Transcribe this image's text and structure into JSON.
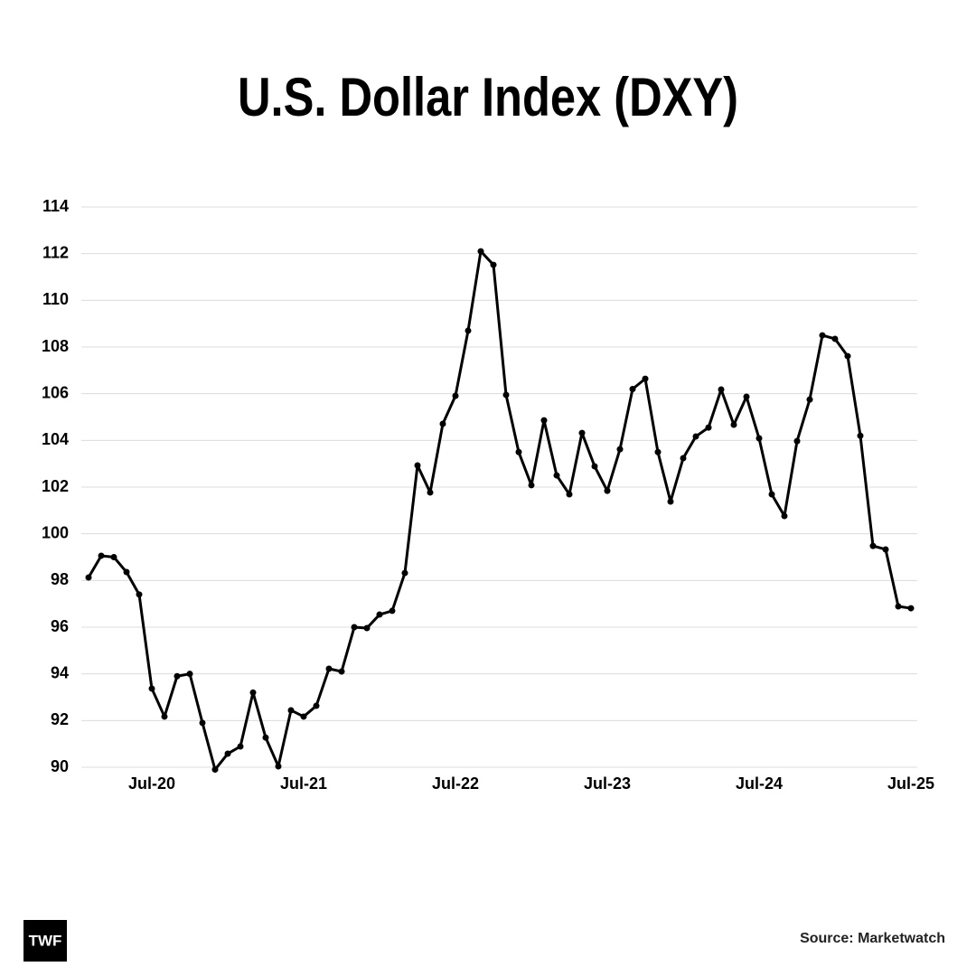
{
  "chart_data": {
    "type": "line",
    "title": "U.S. Dollar Index (DXY)",
    "categories": [
      null,
      null,
      null,
      null,
      null,
      "Jul-20",
      null,
      null,
      null,
      null,
      null,
      null,
      null,
      null,
      null,
      null,
      null,
      "Jul-21",
      null,
      null,
      null,
      null,
      null,
      null,
      null,
      null,
      null,
      null,
      null,
      "Jul-22",
      null,
      null,
      null,
      null,
      null,
      null,
      null,
      null,
      null,
      null,
      null,
      "Jul-23",
      null,
      null,
      null,
      null,
      null,
      null,
      null,
      null,
      null,
      null,
      null,
      "Jul-24",
      null,
      null,
      null,
      null,
      null,
      null,
      null,
      null,
      null,
      null,
      null,
      "Jul-25"
    ],
    "series": [
      {
        "name": "DXY",
        "color": "#000000",
        "values": [
          98.13,
          99.06,
          99.0,
          98.36,
          97.4,
          93.37,
          92.17,
          93.9,
          94.0,
          91.9,
          89.9,
          90.58,
          90.89,
          93.2,
          91.27,
          90.04,
          92.44,
          92.17,
          92.63,
          94.22,
          94.1,
          96.0,
          95.96,
          96.54,
          96.7,
          98.32,
          102.93,
          101.77,
          104.71,
          105.91,
          108.7,
          112.1,
          111.52,
          105.95,
          103.5,
          102.08,
          104.86,
          102.5,
          101.69,
          104.32,
          102.89,
          101.84,
          103.62,
          106.2,
          106.64,
          103.5,
          101.38,
          103.24,
          104.17,
          104.55,
          106.18,
          104.67,
          105.87,
          104.09,
          101.69,
          100.76,
          103.97,
          105.75,
          108.5,
          108.35,
          107.61,
          104.2,
          99.48,
          99.33,
          96.89,
          96.81
        ]
      }
    ],
    "ylim": [
      90,
      114
    ],
    "yticks": [
      90,
      92,
      94,
      96,
      98,
      100,
      102,
      104,
      106,
      108,
      110,
      112,
      114
    ],
    "grid": true,
    "source": "Source: Marketwatch",
    "brand": "TWF"
  }
}
